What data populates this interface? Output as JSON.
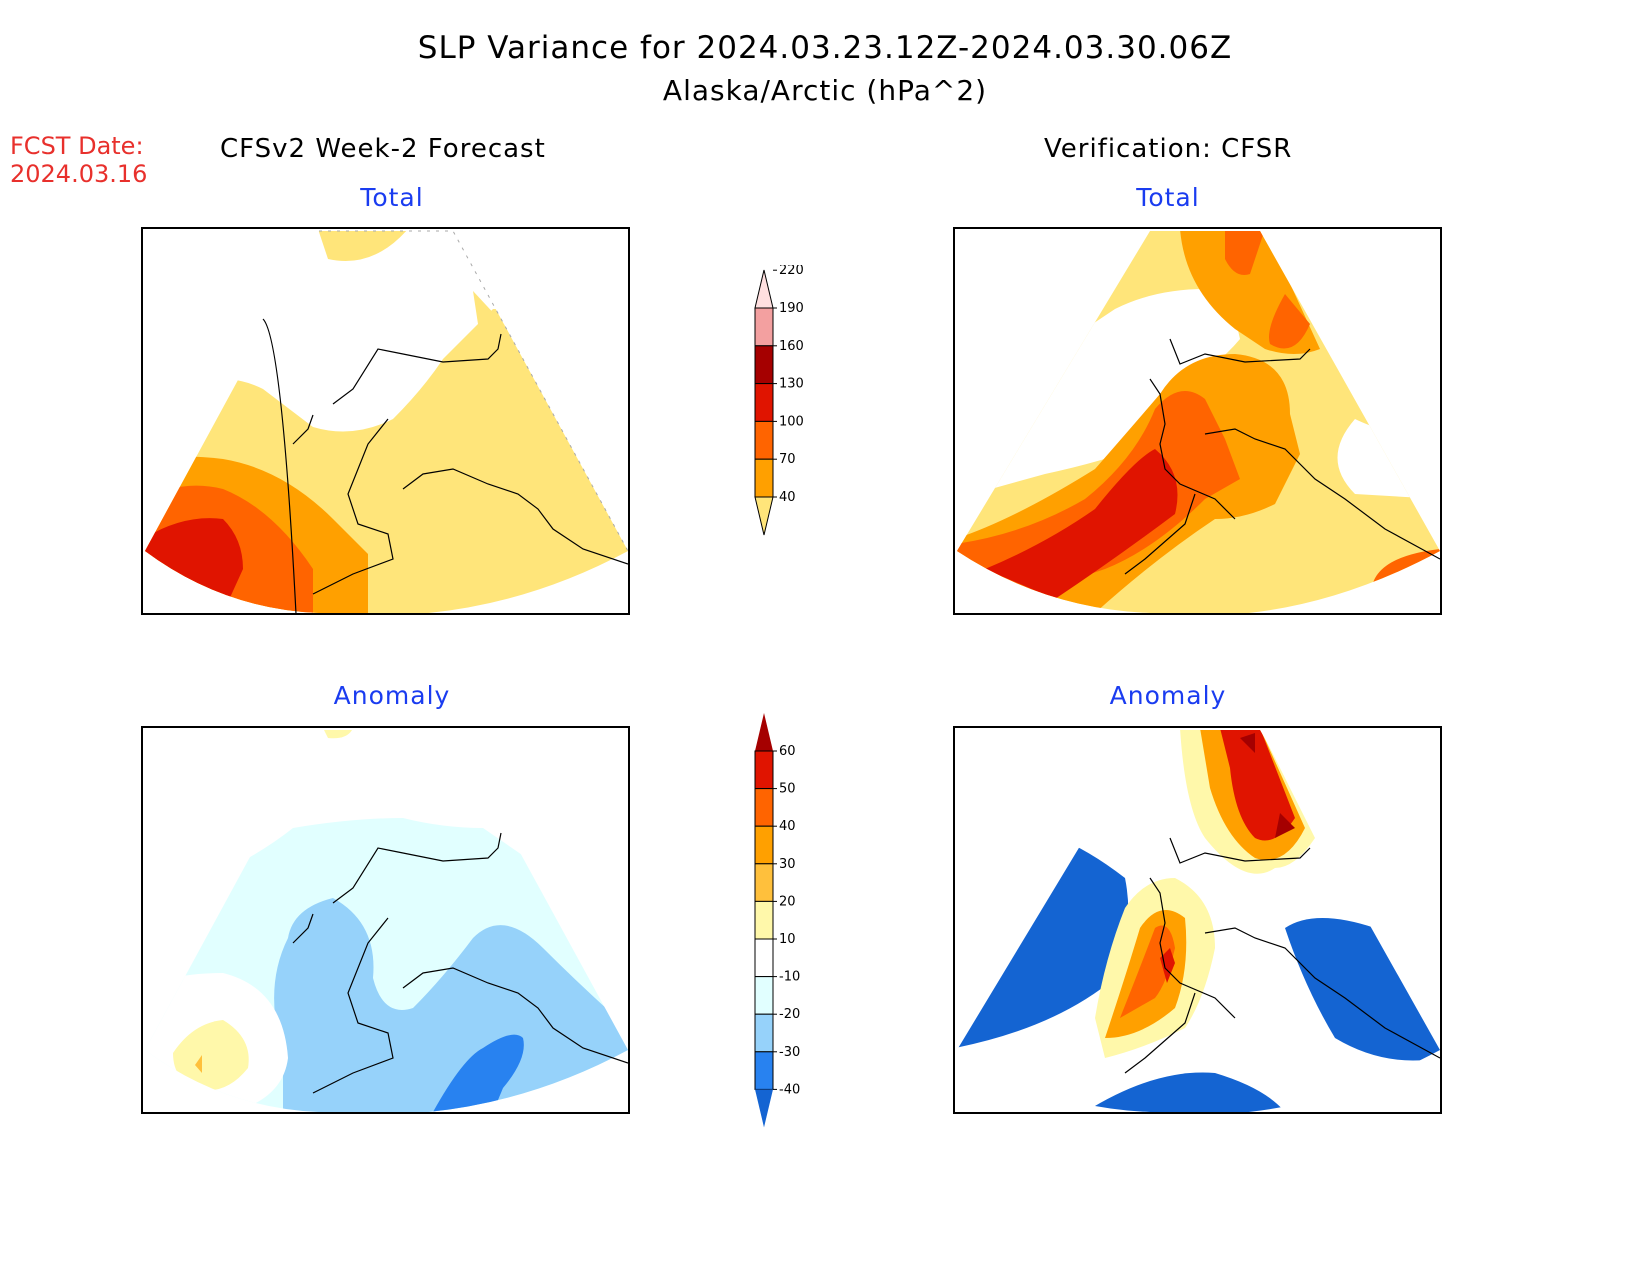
{
  "header": {
    "title": "SLP Variance for 2024.03.23.12Z-2024.03.30.06Z",
    "subtitle": "Alaska/Arctic (hPa^2)"
  },
  "forecast_date": {
    "label": "FCST Date:",
    "value": "2024.03.16"
  },
  "columns": {
    "left": "CFSv2 Week-2 Forecast",
    "right": "Verification: CFSR"
  },
  "panels": {
    "forecast_total": {
      "title": "Total"
    },
    "verification_total": {
      "title": "Total"
    },
    "forecast_anomaly": {
      "title": "Anomaly"
    },
    "verification_anomaly": {
      "title": "Anomaly"
    }
  },
  "colorbars": {
    "total": {
      "levels": [
        "40",
        "70",
        "100",
        "130",
        "160",
        "190",
        "220"
      ],
      "colors": [
        "#ffe57a",
        "#ffa000",
        "#ff6400",
        "#e01400",
        "#a50000",
        "#f3a0a0",
        "#ffe0e0"
      ]
    },
    "anomaly": {
      "levels": [
        "-40",
        "-30",
        "-20",
        "-10",
        "10",
        "20",
        "30",
        "40",
        "50",
        "60"
      ],
      "colors": [
        "#1464d2",
        "#2882f0",
        "#96d2fa",
        "#e1ffff",
        "#ffffff",
        "#fff8aa",
        "#ffc03c",
        "#ffa000",
        "#ff6400",
        "#e01400",
        "#a50000"
      ]
    }
  }
}
